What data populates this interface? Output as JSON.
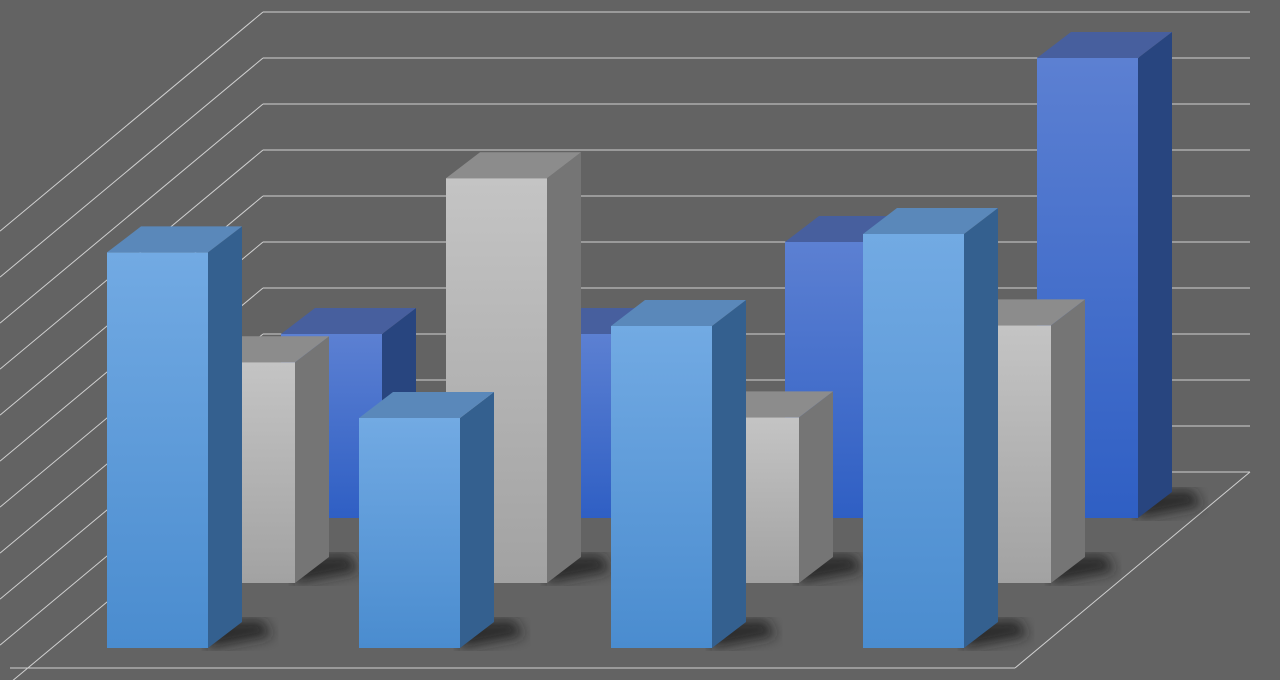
{
  "chart_data": {
    "type": "bar",
    "style": "3d-clustered-depth",
    "title": "",
    "xlabel": "",
    "ylabel": "",
    "ylim": [
      0,
      10
    ],
    "grid": true,
    "legend": "none",
    "categories": [
      "",
      "",
      "",
      ""
    ],
    "series": [
      {
        "values": [
          8.6,
          5.0,
          7.0,
          9.0
        ],
        "color": "#5b9bd9"
      },
      {
        "values": [
          4.8,
          8.8,
          3.6,
          5.6
        ],
        "color": "#b4b4b4"
      },
      {
        "values": [
          4.0,
          4.0,
          6.0,
          10.0
        ],
        "color": "#3f6ccc"
      }
    ],
    "background_color": "#636363",
    "gridline_color": "#d0d0d0"
  }
}
